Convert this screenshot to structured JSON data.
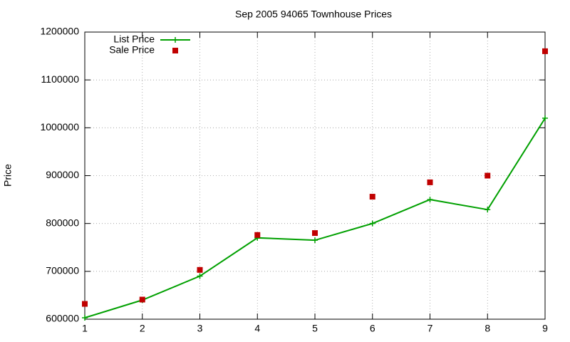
{
  "chart_data": {
    "type": "line",
    "title": "Sep 2005 94065 Townhouse Prices",
    "ylabel": "Price",
    "x": [
      1,
      2,
      3,
      4,
      5,
      6,
      7,
      8,
      9
    ],
    "xlim": [
      1,
      9
    ],
    "xticks": [
      1,
      2,
      3,
      4,
      5,
      6,
      7,
      8,
      9
    ],
    "ylim": [
      600000,
      1200000
    ],
    "yticks": [
      600000,
      700000,
      800000,
      900000,
      1000000,
      1100000,
      1200000
    ],
    "grid": true,
    "legend": "top left",
    "series": [
      {
        "name": "List Price",
        "color": "#00a000",
        "mode": "lines+points",
        "values": [
          603000,
          640000,
          690000,
          770000,
          765000,
          800000,
          850000,
          829000,
          1020000
        ]
      },
      {
        "name": "Sale Price",
        "color": "#c00000",
        "mode": "points",
        "values": [
          632000,
          641000,
          703000,
          776000,
          780000,
          856000,
          886000,
          900000,
          1160000
        ]
      }
    ]
  }
}
